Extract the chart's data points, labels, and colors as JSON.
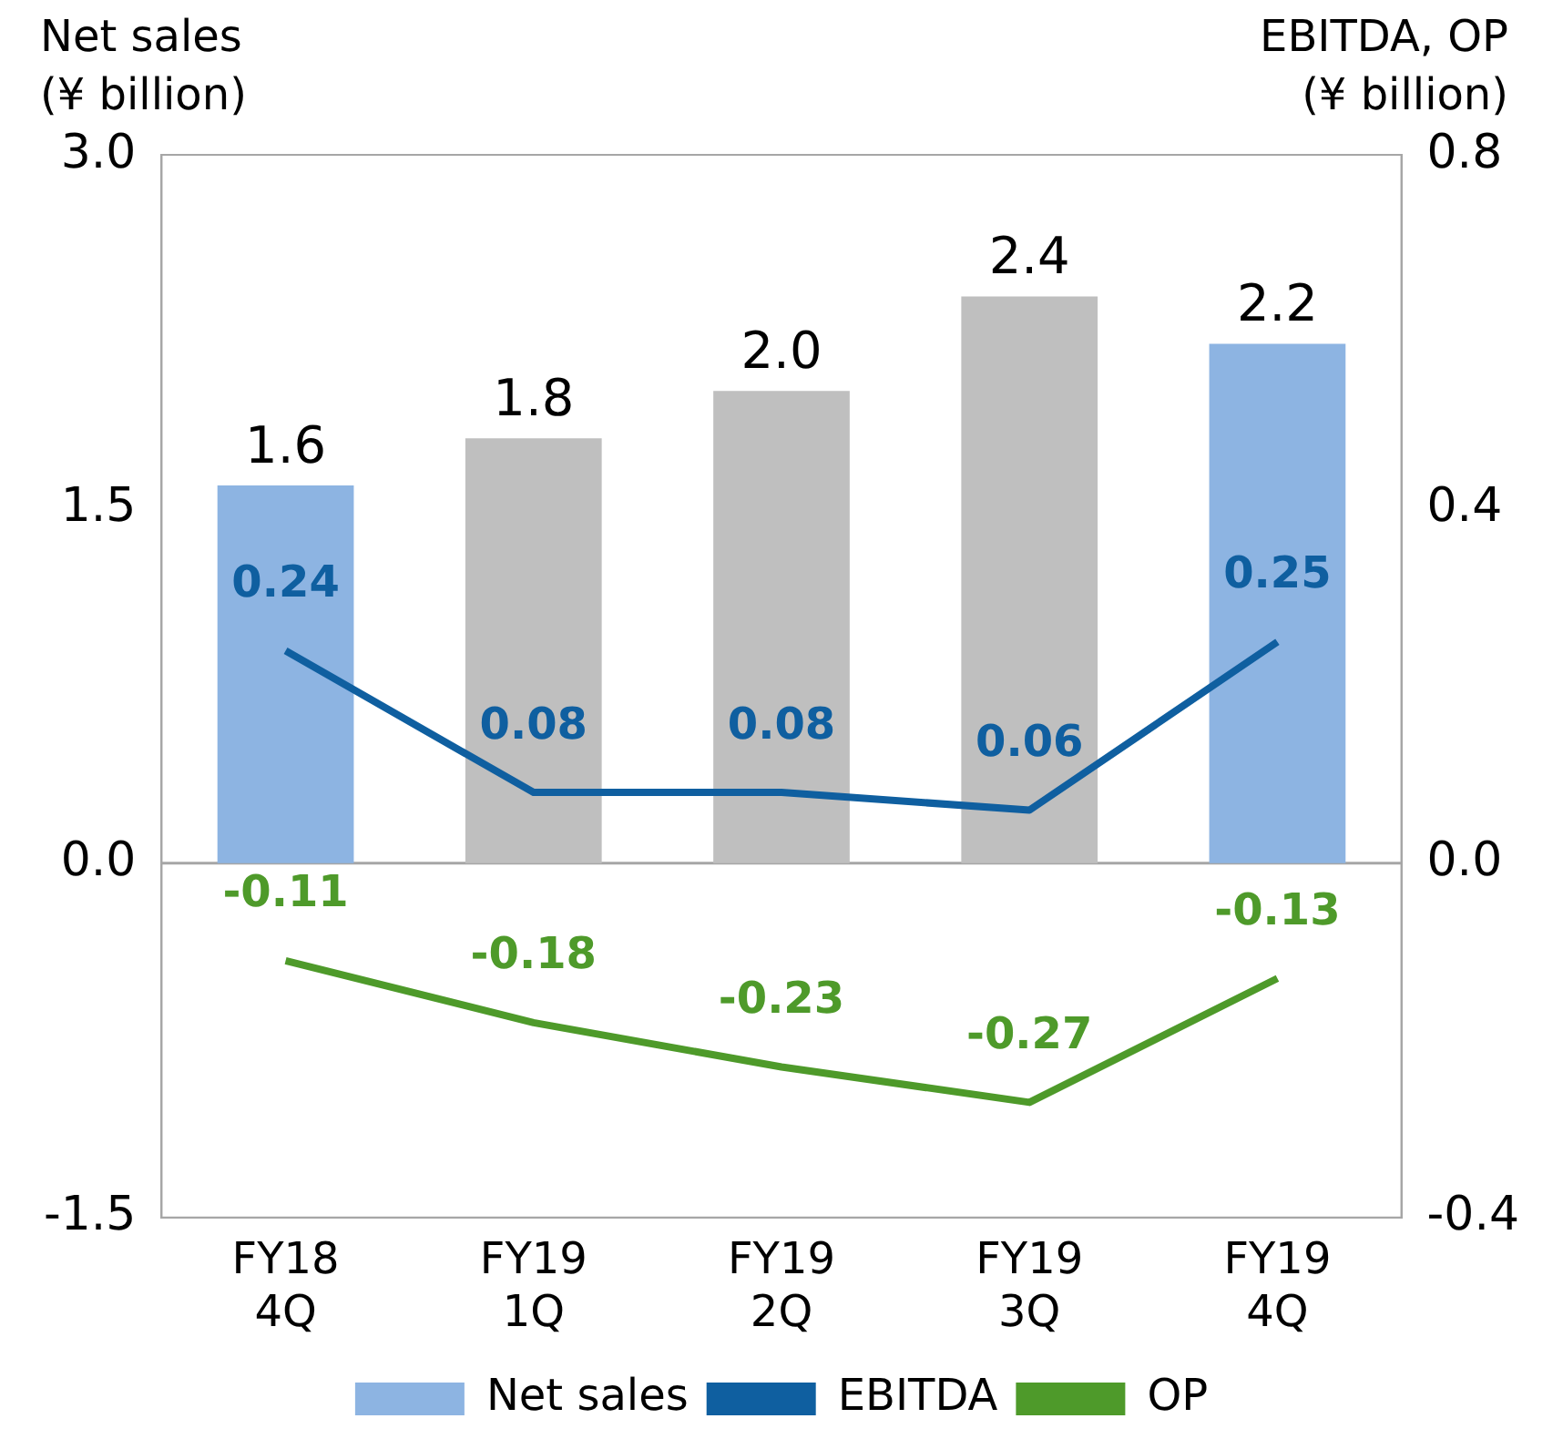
{
  "chart_data": {
    "type": "bar",
    "ylabel": "Net sales\n(¥ billion)",
    "y2label": "EBITDA, OP\n(¥ billion)",
    "categories": [
      "FY18 4Q",
      "FY19 1Q",
      "FY19 2Q",
      "FY19 3Q",
      "FY19 4Q"
    ],
    "series": [
      {
        "name": "Net sales",
        "colors": [
          "#8db4e2",
          "#bfbfbf",
          "#bfbfbf",
          "#bfbfbf",
          "#8db4e2"
        ],
        "color": "#8db4e2",
        "values": [
          1.6,
          1.8,
          2.0,
          2.4,
          2.2
        ],
        "value_labels": [
          "1.6",
          "1.8",
          "2.0",
          "2.4",
          "2.2"
        ]
      },
      {
        "name": "EBITDA",
        "type": "line",
        "axis": "y2",
        "color": "#0f5fa0",
        "values": [
          0.24,
          0.08,
          0.08,
          0.06,
          0.25
        ],
        "value_labels": [
          "0.24",
          "0.08",
          "0.08",
          "0.06",
          "0.25"
        ]
      },
      {
        "name": "OP",
        "type": "line",
        "axis": "y2",
        "color": "#4e9a2a",
        "values": [
          -0.11,
          -0.18,
          -0.23,
          -0.27,
          -0.13
        ],
        "value_labels": [
          "-0.11",
          "-0.18",
          "-0.23",
          "-0.27",
          "-0.13"
        ]
      }
    ],
    "ylim": [
      -1.5,
      3
    ],
    "yticks": [
      {
        "value": -1.5,
        "label": "-1.5"
      },
      {
        "value": 0,
        "label": "0.0"
      },
      {
        "value": 1.5,
        "label": "1.5"
      },
      {
        "value": 3,
        "label": "3.0"
      }
    ],
    "y2lim": [
      -0.4,
      0.8
    ],
    "y2ticks": [
      {
        "value": -0.4,
        "label": "-0.4"
      },
      {
        "value": 0,
        "label": "0.0"
      },
      {
        "value": 0.4,
        "label": "0.4"
      },
      {
        "value": 0.8,
        "label": "0.8"
      }
    ],
    "ref_lines": [
      {
        "axis": "y",
        "value": 0,
        "color": "#a6a6a6"
      }
    ],
    "legend": "bottom",
    "grid": false,
    "marker": "none",
    "line_style": "solid"
  }
}
